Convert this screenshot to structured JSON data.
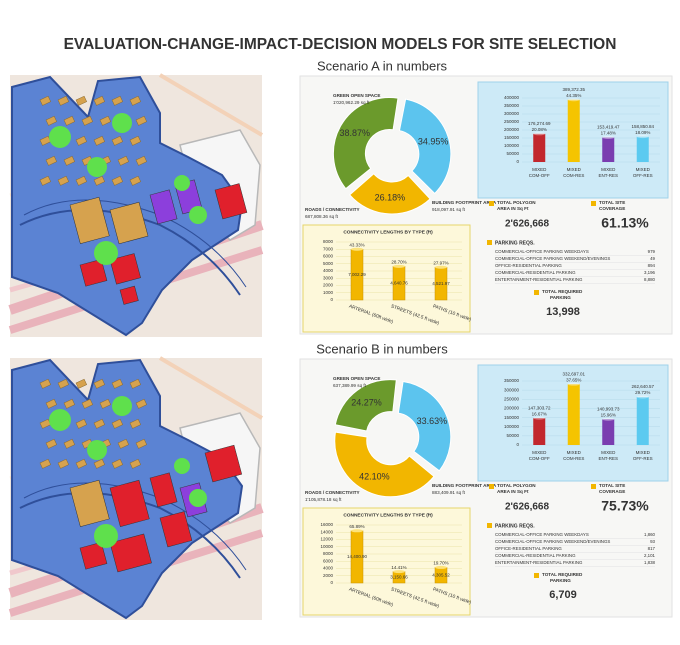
{
  "title": "EVALUATION-CHANGE-IMPACT-DECISION MODELS FOR SITE SELECTION",
  "scenarios": [
    {
      "heading": "Scenario A in numbers",
      "donut": {
        "segments": [
          {
            "label": "GREEN OPEN SPACE",
            "area": "1'020,962.29 sq ft",
            "percent": 38.87,
            "percent_label": "38.87%",
            "color": "#6b9a2c"
          },
          {
            "label": "BUILDING FOOTPRINT AREA",
            "area": "918,097.91 sq ft",
            "percent": 34.95,
            "percent_label": "34.95%",
            "color": "#5cc4ee"
          },
          {
            "label": "ROADS / CONNECTIVITY",
            "area": "687,808.36 sq ft",
            "percent": 26.18,
            "percent_label": "26.18%",
            "color": "#f2b600"
          }
        ]
      },
      "area_chart": {
        "ylim": [
          0,
          400000
        ],
        "yticks": [
          0,
          50000,
          100000,
          150000,
          200000,
          250000,
          300000,
          350000,
          400000
        ],
        "bars": [
          {
            "category": [
              "MIXED",
              "COM-OFF"
            ],
            "value": 176274.69,
            "value_label": "176,274.69",
            "share": "20.08%",
            "color": "#c2272d"
          },
          {
            "category": [
              "MIXED",
              "COM-RES"
            ],
            "value": 389372.35,
            "value_label": "389,372.35",
            "share": "44.35%",
            "color": "#f5c400"
          },
          {
            "category": [
              "MIXED",
              "ENT-RES"
            ],
            "value": 153419.47,
            "value_label": "153,419.47",
            "share": "17.48%",
            "color": "#7a3db0"
          },
          {
            "category": [
              "MIXED",
              "OFF-RES"
            ],
            "value": 158850.84,
            "value_label": "158,850.84",
            "share": "18.09%",
            "color": "#5ccaf0"
          }
        ]
      },
      "totals": {
        "polygon_label": [
          "TOTAL POLYGON",
          "AREA IN Sq Ft"
        ],
        "polygon_value": "2'626,668",
        "coverage_label": [
          "TOTAL SITE",
          "COVERAGE"
        ],
        "coverage_value": "61.13%"
      },
      "connectivity": {
        "title": "CONNECTIVITY LENGTHS BY TYPE (ft)",
        "ylim": [
          0,
          8000
        ],
        "yticks": [
          0,
          1000,
          2000,
          3000,
          4000,
          5000,
          6000,
          7000,
          8000
        ],
        "bars": [
          {
            "category": "ARTERIAL (60ft wide)",
            "value": 7002.29,
            "value_label": "7,002.29",
            "share": "43.33%"
          },
          {
            "category": "STREETS (42.5 ft wide)",
            "value": 4640.76,
            "value_label": "4,640.76",
            "share": "28.70%"
          },
          {
            "category": "PATHS (10 ft wide)",
            "value": 4521.97,
            "value_label": "4,521.97",
            "share": "27.97%"
          }
        ]
      },
      "parking": {
        "title": "PARKING REQS.",
        "items": [
          {
            "label": "COMMERCIAL-OFFICE PARKING WEEKDAYS",
            "value": "979"
          },
          {
            "label": "COMMERCIAL-OFFICE PARKING WEEKEND/EVENINGS",
            "value": "49"
          },
          {
            "label": "OFFICE-RESIDENTIAL PARKING",
            "value": "894"
          },
          {
            "label": "COMMERCIAL-RESIDENTIAL PARKING",
            "value": "3,196"
          },
          {
            "label": "ENTERTAINMENT-RESIDENTIAL PARKING",
            "value": "8,880"
          }
        ],
        "total_label": [
          "TOTAL REQUIRED",
          "PARKING"
        ],
        "total_value": "13,998"
      }
    },
    {
      "heading": "Scenario B in numbers",
      "donut": {
        "segments": [
          {
            "label": "GREEN OPEN SPACE",
            "area": "637,389.99 sq ft",
            "percent": 24.27,
            "percent_label": "24.27%",
            "color": "#6b9a2c"
          },
          {
            "label": "BUILDING FOOTPRINT AREA",
            "area": "883,409.91 sq ft",
            "percent": 33.63,
            "percent_label": "33.63%",
            "color": "#5cc4ee"
          },
          {
            "label": "ROADS / CONNECTIVITY",
            "area": "1'105,878.18 sq ft",
            "percent": 42.1,
            "percent_label": "42.10%",
            "color": "#f2b600"
          }
        ]
      },
      "area_chart": {
        "ylim": [
          0,
          350000
        ],
        "yticks": [
          0,
          50000,
          100000,
          150000,
          200000,
          250000,
          300000,
          350000
        ],
        "bars": [
          {
            "category": [
              "MIXED",
              "COM-OFF"
            ],
            "value": 147303.72,
            "value_label": "147,303.72",
            "share": "16.67%",
            "color": "#c2272d"
          },
          {
            "category": [
              "MIXED",
              "COM-RES"
            ],
            "value": 332697.01,
            "value_label": "332,697.01",
            "share": "37.65%",
            "color": "#f5c400"
          },
          {
            "category": [
              "MIXED",
              "ENT-RES"
            ],
            "value": 140993.73,
            "value_label": "140,993.73",
            "share": "15.96%",
            "color": "#7a3db0"
          },
          {
            "category": [
              "MIXED",
              "OFF-RES"
            ],
            "value": 262640.57,
            "value_label": "262,640.57",
            "share": "29.72%",
            "color": "#5ccaf0"
          }
        ]
      },
      "totals": {
        "polygon_label": [
          "TOTAL POLYGON",
          "AREA IN Sq Ft"
        ],
        "polygon_value": "2'626,668",
        "coverage_label": [
          "TOTAL SITE",
          "COVERAGE"
        ],
        "coverage_value": "75.73%"
      },
      "connectivity": {
        "title": "CONNECTIVITY LENGTHS BY TYPE (ft)",
        "ylim": [
          0,
          16000
        ],
        "yticks": [
          0,
          2000,
          4000,
          6000,
          8000,
          10000,
          12000,
          14000,
          16000
        ],
        "bars": [
          {
            "category": "ARTERIAL (60ft wide)",
            "value": 14400.9,
            "value_label": "14,400.90",
            "share": "65.89%"
          },
          {
            "category": "STREETS (42.5 ft wide)",
            "value": 3150.66,
            "value_label": "3,150.66",
            "share": "14.41%"
          },
          {
            "category": "PATHS (10 ft wide)",
            "value": 4305.52,
            "value_label": "4,305.52",
            "share": "19.70%"
          }
        ]
      },
      "parking": {
        "title": "PARKING REQS.",
        "items": [
          {
            "label": "COMMERCIAL-OFFICE PARKING WEEKDAYS",
            "value": "1,860"
          },
          {
            "label": "COMMERCIAL-OFFICE PARKING WEEKEND/EVENINGS",
            "value": "93"
          },
          {
            "label": "OFFICE-RESIDENTIAL PARKING",
            "value": "817"
          },
          {
            "label": "COMMERCIAL-RESIDENTIAL PARKING",
            "value": "2,101"
          },
          {
            "label": "ENTERTAINMENT-RESIDENTIAL PARKING",
            "value": "1,838"
          }
        ],
        "total_label": [
          "TOTAL REQUIRED",
          "PARKING"
        ],
        "total_value": "6,709"
      }
    }
  ]
}
